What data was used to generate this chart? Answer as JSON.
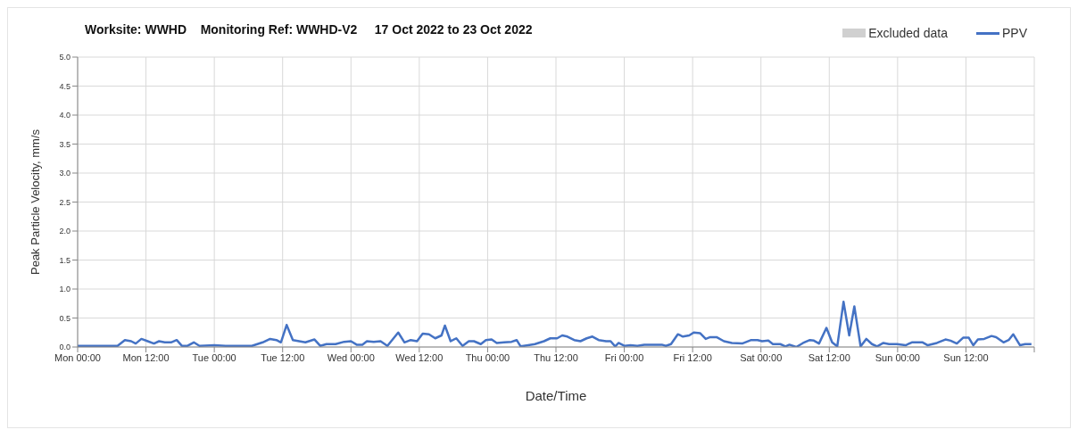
{
  "chart_data": {
    "type": "line",
    "title": "Worksite: WWHD    Monitoring Ref: WWHD-V2     17 Oct 2022 to 23 Oct 2022",
    "xlabel": "Date/Time",
    "ylabel": "Peak Particle Velocity, mm/s",
    "xlim": [
      "2022-10-17T00:00",
      "2022-10-24T00:00"
    ],
    "xticks": [
      {
        "value": "2022-10-17T00:00",
        "label": "Mon 00:00"
      },
      {
        "value": "2022-10-17T12:00",
        "label": "Mon 12:00"
      },
      {
        "value": "2022-10-18T00:00",
        "label": "Tue 00:00"
      },
      {
        "value": "2022-10-18T12:00",
        "label": "Tue 12:00"
      },
      {
        "value": "2022-10-19T00:00",
        "label": "Wed 00:00"
      },
      {
        "value": "2022-10-19T12:00",
        "label": "Wed 12:00"
      },
      {
        "value": "2022-10-20T00:00",
        "label": "Thu 00:00"
      },
      {
        "value": "2022-10-20T12:00",
        "label": "Thu 12:00"
      },
      {
        "value": "2022-10-21T00:00",
        "label": "Fri 00:00"
      },
      {
        "value": "2022-10-21T12:00",
        "label": "Fri 12:00"
      },
      {
        "value": "2022-10-22T00:00",
        "label": "Sat 00:00"
      },
      {
        "value": "2022-10-22T12:00",
        "label": "Sat 12:00"
      },
      {
        "value": "2022-10-23T00:00",
        "label": "Sun 00:00"
      },
      {
        "value": "2022-10-23T12:00",
        "label": "Sun 12:00"
      },
      {
        "value": "2022-10-24T00:00",
        "label": null
      }
    ],
    "ylim": [
      0,
      5
    ],
    "yticks": [
      {
        "value": 0,
        "label": "0.0"
      },
      {
        "value": 0.5,
        "label": "0.5"
      },
      {
        "value": 1,
        "label": "1.0"
      },
      {
        "value": 1.5,
        "label": "1.5"
      },
      {
        "value": 2,
        "label": "2.0"
      },
      {
        "value": 2.5,
        "label": "2.5"
      },
      {
        "value": 3,
        "label": "3.0"
      },
      {
        "value": 3.5,
        "label": "3.5"
      },
      {
        "value": 4,
        "label": "4.0"
      },
      {
        "value": 4.5,
        "label": "4.5"
      },
      {
        "value": 5,
        "label": "5.0"
      }
    ],
    "grid": true,
    "legend": "top right",
    "marker": "none",
    "line_style": "solid",
    "x": [
      "2022-10-17T00:00",
      "2022-10-17T07:00",
      "2022-10-17T08:18",
      "2022-10-17T09:24",
      "2022-10-17T10:12",
      "2022-10-17T11:12",
      "2022-10-17T12:18",
      "2022-10-17T13:24",
      "2022-10-17T14:18",
      "2022-10-17T15:18",
      "2022-10-17T16:24",
      "2022-10-17T17:24",
      "2022-10-17T18:18",
      "2022-10-17T19:18",
      "2022-10-17T20:24",
      "2022-10-17T21:24",
      "2022-10-18T00:00",
      "2022-10-18T02:00",
      "2022-10-18T06:36",
      "2022-10-18T08:30",
      "2022-10-18T09:48",
      "2022-10-18T10:54",
      "2022-10-18T11:42",
      "2022-10-18T12:42",
      "2022-10-18T13:48",
      "2022-10-18T14:54",
      "2022-10-18T16:00",
      "2022-10-18T17:36",
      "2022-10-18T18:36",
      "2022-10-18T19:42",
      "2022-10-18T21:18",
      "2022-10-18T22:48",
      "2022-10-19T00:00",
      "2022-10-19T01:00",
      "2022-10-19T02:00",
      "2022-10-19T02:48",
      "2022-10-19T04:00",
      "2022-10-19T05:12",
      "2022-10-19T06:24",
      "2022-10-19T08:18",
      "2022-10-19T09:24",
      "2022-10-19T10:30",
      "2022-10-19T11:36",
      "2022-10-19T12:36",
      "2022-10-19T13:42",
      "2022-10-19T14:48",
      "2022-10-19T15:54",
      "2022-10-19T16:30",
      "2022-10-19T17:30",
      "2022-10-19T18:30",
      "2022-10-19T19:36",
      "2022-10-19T20:42",
      "2022-10-19T21:36",
      "2022-10-19T22:48",
      "2022-10-19T23:42",
      "2022-10-20T00:42",
      "2022-10-20T01:36",
      "2022-10-20T02:54",
      "2022-10-20T04:12",
      "2022-10-20T05:06",
      "2022-10-20T05:48",
      "2022-10-20T07:06",
      "2022-10-20T08:18",
      "2022-10-20T09:54",
      "2022-10-20T11:00",
      "2022-10-20T12:12",
      "2022-10-20T13:06",
      "2022-10-20T14:00",
      "2022-10-20T15:12",
      "2022-10-20T16:18",
      "2022-10-20T17:24",
      "2022-10-20T18:24",
      "2022-10-20T19:30",
      "2022-10-20T20:48",
      "2022-10-20T21:36",
      "2022-10-20T22:24",
      "2022-10-20T23:00",
      "2022-10-21T00:00",
      "2022-10-21T01:06",
      "2022-10-21T02:18",
      "2022-10-21T03:30",
      "2022-10-21T06:36",
      "2022-10-21T07:18",
      "2022-10-21T08:12",
      "2022-10-21T09:24",
      "2022-10-21T10:18",
      "2022-10-21T11:24",
      "2022-10-21T12:12",
      "2022-10-21T13:18",
      "2022-10-21T14:18",
      "2022-10-21T15:06",
      "2022-10-21T16:12",
      "2022-10-21T17:30",
      "2022-10-21T18:54",
      "2022-10-21T20:42",
      "2022-10-21T22:18",
      "2022-10-21T23:24",
      "2022-10-22T00:12",
      "2022-10-22T01:18",
      "2022-10-22T02:06",
      "2022-10-22T03:24",
      "2022-10-22T04:18",
      "2022-10-22T05:00",
      "2022-10-22T06:12",
      "2022-10-22T07:24",
      "2022-10-22T08:36",
      "2022-10-22T09:18",
      "2022-10-22T10:12",
      "2022-10-22T11:30",
      "2022-10-22T12:30",
      "2022-10-22T13:24",
      "2022-10-22T14:30",
      "2022-10-22T15:30",
      "2022-10-22T16:24",
      "2022-10-22T17:30",
      "2022-10-22T18:30",
      "2022-10-22T19:30",
      "2022-10-22T20:24",
      "2022-10-22T21:30",
      "2022-10-22T22:30",
      "2022-10-22T23:54",
      "2022-10-23T01:24",
      "2022-10-23T02:30",
      "2022-10-23T04:24",
      "2022-10-23T05:18",
      "2022-10-23T06:54",
      "2022-10-23T08:24",
      "2022-10-23T09:18",
      "2022-10-23T10:24",
      "2022-10-23T11:30",
      "2022-10-23T12:30",
      "2022-10-23T13:18",
      "2022-10-23T14:06",
      "2022-10-23T15:12",
      "2022-10-23T16:30",
      "2022-10-23T17:18",
      "2022-10-23T18:36",
      "2022-10-23T19:30",
      "2022-10-23T20:18",
      "2022-10-23T21:30",
      "2022-10-23T22:24",
      "2022-10-23T23:30"
    ],
    "series": [
      {
        "name": "Excluded data",
        "type": "area",
        "color": "#d0d0d0",
        "values": [
          null,
          null,
          null,
          null,
          null,
          null,
          null,
          null,
          null,
          null,
          null,
          null,
          null,
          null,
          null,
          null,
          null,
          null,
          null,
          null,
          null,
          null,
          null,
          null,
          null,
          null,
          null,
          null,
          null,
          null,
          null,
          null,
          null,
          null,
          null,
          null,
          null,
          null,
          null,
          null,
          null,
          null,
          null,
          null,
          null,
          null,
          null,
          null,
          null,
          null,
          null,
          null,
          null,
          null,
          null,
          null,
          null,
          null,
          null,
          null,
          null,
          null,
          null,
          null,
          null,
          null,
          null,
          null,
          null,
          null,
          null,
          null,
          null,
          null,
          null,
          null,
          null,
          null,
          null,
          null,
          null,
          null,
          null,
          null,
          null,
          null,
          null,
          null,
          null,
          null,
          null,
          null,
          null,
          null,
          null,
          null,
          null,
          null,
          null,
          null,
          null,
          null,
          null,
          null,
          null,
          null,
          null,
          null,
          null,
          null,
          null,
          null,
          null,
          null,
          null,
          null,
          null,
          null,
          null,
          null,
          null,
          null,
          null,
          null,
          null,
          null,
          null,
          null,
          null,
          null,
          null,
          null,
          null,
          null,
          null,
          null,
          null,
          null,
          null,
          null,
          null,
          null
        ]
      },
      {
        "name": "PPV",
        "color": "#4472c4",
        "values": [
          0.02,
          0.02,
          0.12,
          0.1,
          0.06,
          0.14,
          0.1,
          0.06,
          0.1,
          0.08,
          0.08,
          0.12,
          0.02,
          0.02,
          0.08,
          0.02,
          0.03,
          0.02,
          0.02,
          0.08,
          0.14,
          0.12,
          0.08,
          0.38,
          0.12,
          0.1,
          0.08,
          0.13,
          0.02,
          0.05,
          0.05,
          0.09,
          0.1,
          0.04,
          0.04,
          0.1,
          0.09,
          0.1,
          0.02,
          0.25,
          0.08,
          0.12,
          0.1,
          0.23,
          0.22,
          0.15,
          0.2,
          0.37,
          0.1,
          0.15,
          0.02,
          0.1,
          0.1,
          0.05,
          0.12,
          0.13,
          0.07,
          0.08,
          0.09,
          0.12,
          0.01,
          0.03,
          0.05,
          0.1,
          0.15,
          0.15,
          0.2,
          0.18,
          0.12,
          0.1,
          0.15,
          0.18,
          0.12,
          0.1,
          0.1,
          0.01,
          0.07,
          0.02,
          0.03,
          0.02,
          0.04,
          0.04,
          0.02,
          0.05,
          0.22,
          0.18,
          0.2,
          0.25,
          0.24,
          0.14,
          0.17,
          0.17,
          0.1,
          0.07,
          0.06,
          0.12,
          0.12,
          0.1,
          0.11,
          0.05,
          0.05,
          0.01,
          0.04,
          0.0,
          0.07,
          0.12,
          0.11,
          0.06,
          0.33,
          0.08,
          0.01,
          0.78,
          0.2,
          0.7,
          0.01,
          0.14,
          0.05,
          0.01,
          0.07,
          0.05,
          0.05,
          0.03,
          0.08,
          0.08,
          0.03,
          0.07,
          0.13,
          0.11,
          0.06,
          0.16,
          0.16,
          0.03,
          0.13,
          0.14,
          0.19,
          0.17,
          0.08,
          0.12,
          0.22,
          0.03,
          0.05,
          0.05
        ]
      }
    ]
  }
}
